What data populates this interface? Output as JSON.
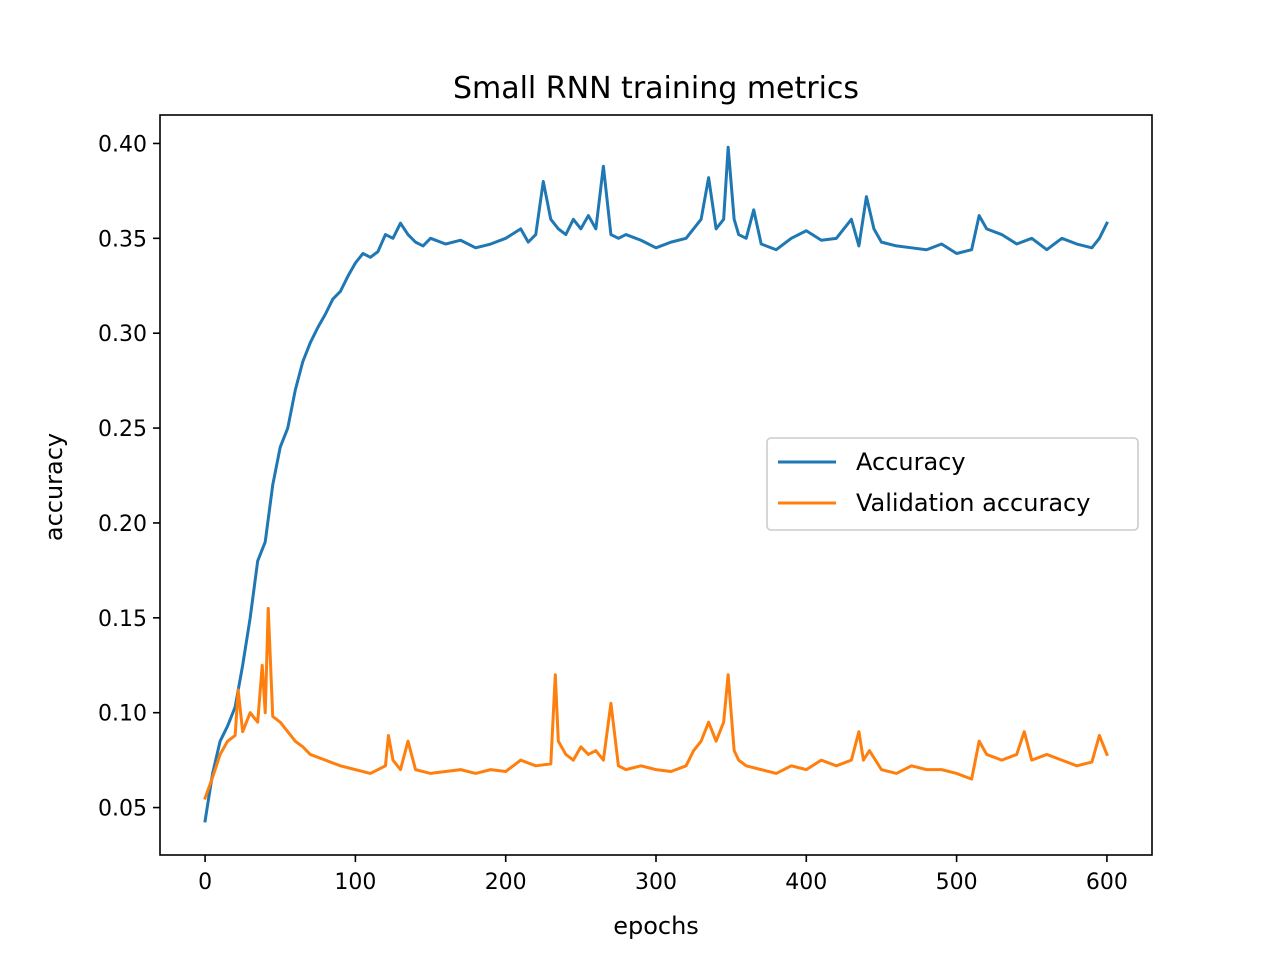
{
  "chart_data": {
    "type": "line",
    "title": "Small RNN training metrics",
    "xlabel": "epochs",
    "ylabel": "accuracy",
    "xlim": [
      -30,
      630
    ],
    "ylim": [
      0.025,
      0.415
    ],
    "xticks": [
      0,
      100,
      200,
      300,
      400,
      500,
      600
    ],
    "xtick_labels": [
      "0",
      "100",
      "200",
      "300",
      "400",
      "500",
      "600"
    ],
    "yticks": [
      0.05,
      0.1,
      0.15,
      0.2,
      0.25,
      0.3,
      0.35,
      0.4
    ],
    "ytick_labels": [
      "0.05",
      "0.10",
      "0.15",
      "0.20",
      "0.25",
      "0.30",
      "0.35",
      "0.40"
    ],
    "grid": false,
    "legend_position": "center-right",
    "series": [
      {
        "name": "Accuracy",
        "color": "#1f77b4",
        "x": [
          0,
          5,
          10,
          15,
          20,
          25,
          30,
          35,
          40,
          45,
          50,
          55,
          60,
          65,
          70,
          75,
          80,
          85,
          90,
          95,
          100,
          105,
          110,
          115,
          120,
          125,
          130,
          135,
          140,
          145,
          150,
          160,
          170,
          180,
          190,
          200,
          210,
          215,
          220,
          225,
          230,
          235,
          240,
          245,
          250,
          255,
          260,
          265,
          270,
          275,
          280,
          290,
          300,
          310,
          320,
          330,
          335,
          340,
          345,
          348,
          352,
          355,
          360,
          365,
          370,
          380,
          390,
          400,
          410,
          420,
          430,
          435,
          440,
          445,
          450,
          460,
          470,
          480,
          490,
          500,
          510,
          515,
          520,
          530,
          540,
          550,
          560,
          570,
          580,
          590,
          595,
          600
        ],
        "y": [
          0.043,
          0.068,
          0.085,
          0.093,
          0.103,
          0.125,
          0.15,
          0.18,
          0.19,
          0.22,
          0.24,
          0.25,
          0.27,
          0.285,
          0.295,
          0.303,
          0.31,
          0.318,
          0.322,
          0.33,
          0.337,
          0.342,
          0.34,
          0.343,
          0.352,
          0.35,
          0.358,
          0.352,
          0.348,
          0.346,
          0.35,
          0.347,
          0.349,
          0.345,
          0.347,
          0.35,
          0.355,
          0.348,
          0.352,
          0.38,
          0.36,
          0.355,
          0.352,
          0.36,
          0.355,
          0.362,
          0.355,
          0.388,
          0.352,
          0.35,
          0.352,
          0.349,
          0.345,
          0.348,
          0.35,
          0.36,
          0.382,
          0.355,
          0.36,
          0.398,
          0.36,
          0.352,
          0.35,
          0.365,
          0.347,
          0.344,
          0.35,
          0.354,
          0.349,
          0.35,
          0.36,
          0.346,
          0.372,
          0.355,
          0.348,
          0.346,
          0.345,
          0.344,
          0.347,
          0.342,
          0.344,
          0.362,
          0.355,
          0.352,
          0.347,
          0.35,
          0.344,
          0.35,
          0.347,
          0.345,
          0.35,
          0.358
        ]
      },
      {
        "name": "Validation accuracy",
        "color": "#ff7f0e",
        "x": [
          0,
          5,
          10,
          15,
          20,
          22,
          25,
          30,
          35,
          38,
          40,
          42,
          45,
          50,
          55,
          60,
          65,
          70,
          80,
          90,
          100,
          110,
          120,
          122,
          125,
          130,
          135,
          140,
          150,
          160,
          170,
          180,
          190,
          200,
          210,
          220,
          230,
          233,
          235,
          240,
          245,
          250,
          255,
          260,
          265,
          270,
          275,
          280,
          290,
          300,
          310,
          320,
          325,
          330,
          335,
          340,
          345,
          348,
          352,
          355,
          360,
          370,
          380,
          390,
          400,
          410,
          420,
          430,
          435,
          438,
          442,
          450,
          460,
          470,
          480,
          490,
          500,
          510,
          515,
          520,
          530,
          540,
          545,
          550,
          560,
          570,
          580,
          590,
          595,
          600
        ],
        "y": [
          0.055,
          0.066,
          0.078,
          0.085,
          0.088,
          0.112,
          0.09,
          0.1,
          0.095,
          0.125,
          0.1,
          0.155,
          0.098,
          0.095,
          0.09,
          0.085,
          0.082,
          0.078,
          0.075,
          0.072,
          0.07,
          0.068,
          0.072,
          0.088,
          0.075,
          0.07,
          0.085,
          0.07,
          0.068,
          0.069,
          0.07,
          0.068,
          0.07,
          0.069,
          0.075,
          0.072,
          0.073,
          0.12,
          0.085,
          0.078,
          0.075,
          0.082,
          0.078,
          0.08,
          0.075,
          0.105,
          0.072,
          0.07,
          0.072,
          0.07,
          0.069,
          0.072,
          0.08,
          0.085,
          0.095,
          0.085,
          0.095,
          0.12,
          0.08,
          0.075,
          0.072,
          0.07,
          0.068,
          0.072,
          0.07,
          0.075,
          0.072,
          0.075,
          0.09,
          0.075,
          0.08,
          0.07,
          0.068,
          0.072,
          0.07,
          0.07,
          0.068,
          0.065,
          0.085,
          0.078,
          0.075,
          0.078,
          0.09,
          0.075,
          0.078,
          0.075,
          0.072,
          0.074,
          0.088,
          0.078
        ]
      }
    ]
  }
}
